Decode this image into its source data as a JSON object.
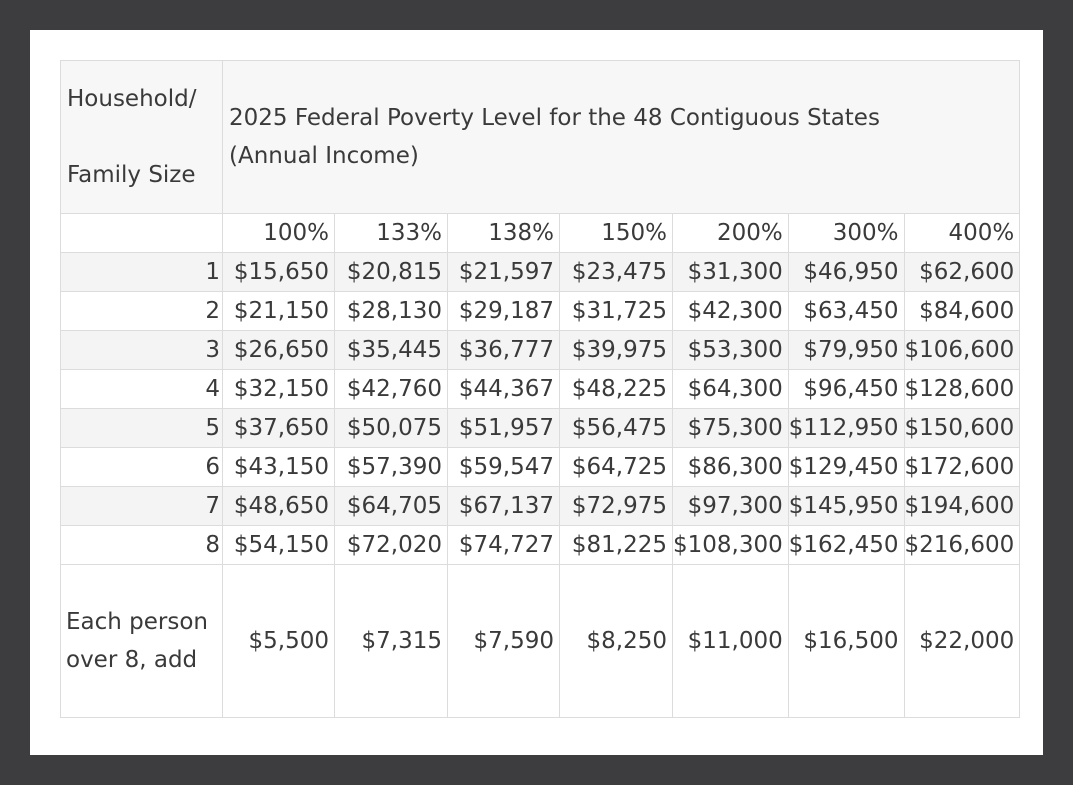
{
  "table": {
    "header": {
      "size_label_line1": "Household/",
      "size_label_line2": "Family Size",
      "title": "2025 Federal Poverty Level for the 48 Contiguous States (Annual Income)"
    },
    "percentages": [
      "100%",
      "133%",
      "138%",
      "150%",
      "200%",
      "300%",
      "400%"
    ],
    "rows": [
      {
        "size": "1",
        "values": [
          "$15,650",
          "$20,815",
          "$21,597",
          "$23,475",
          "$31,300",
          "$46,950",
          "$62,600"
        ]
      },
      {
        "size": "2",
        "values": [
          "$21,150",
          "$28,130",
          "$29,187",
          "$31,725",
          "$42,300",
          "$63,450",
          "$84,600"
        ]
      },
      {
        "size": "3",
        "values": [
          "$26,650",
          "$35,445",
          "$36,777",
          "$39,975",
          "$53,300",
          "$79,950",
          "$106,600"
        ]
      },
      {
        "size": "4",
        "values": [
          "$32,150",
          "$42,760",
          "$44,367",
          "$48,225",
          "$64,300",
          "$96,450",
          "$128,600"
        ]
      },
      {
        "size": "5",
        "values": [
          "$37,650",
          "$50,075",
          "$51,957",
          "$56,475",
          "$75,300",
          "$112,950",
          "$150,600"
        ]
      },
      {
        "size": "6",
        "values": [
          "$43,150",
          "$57,390",
          "$59,547",
          "$64,725",
          "$86,300",
          "$129,450",
          "$172,600"
        ]
      },
      {
        "size": "7",
        "values": [
          "$48,650",
          "$64,705",
          "$67,137",
          "$72,975",
          "$97,300",
          "$145,950",
          "$194,600"
        ]
      },
      {
        "size": "8",
        "values": [
          "$54,150",
          "$72,020",
          "$74,727",
          "$81,225",
          "$108,300",
          "$162,450",
          "$216,600"
        ]
      }
    ],
    "extra": {
      "label_line1": "Each person",
      "label_line2": "over 8, add",
      "values": [
        "$5,500",
        "$7,315",
        "$7,590",
        "$8,250",
        "$11,000",
        "$16,500",
        "$22,000"
      ]
    }
  }
}
